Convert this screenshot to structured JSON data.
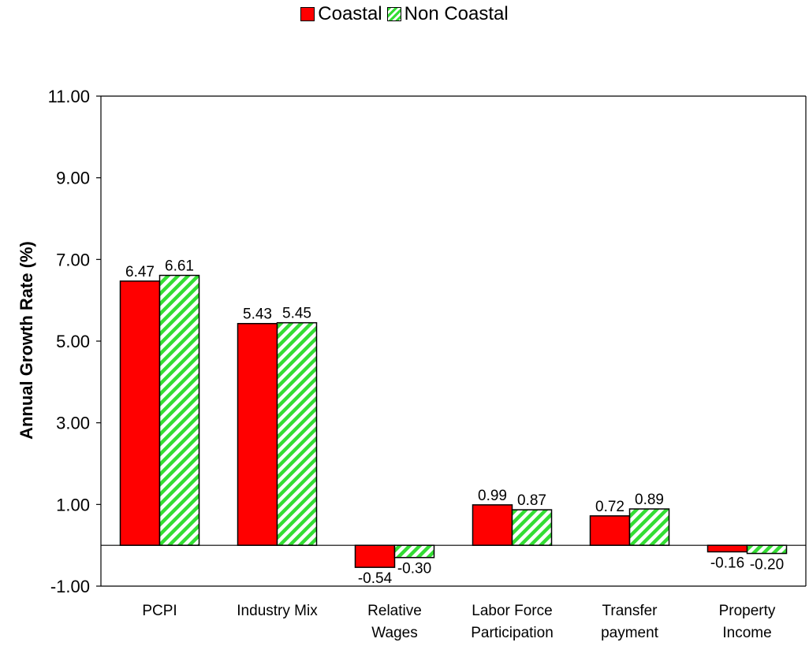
{
  "chart_data": {
    "type": "bar",
    "title": "",
    "xlabel": "",
    "ylabel": "Annual Growth Rate (%)",
    "categories": [
      [
        "PCPI"
      ],
      [
        "Industry Mix"
      ],
      [
        "Relative",
        "Wages"
      ],
      [
        "Labor Force",
        "Participation"
      ],
      [
        "Transfer",
        "payment"
      ],
      [
        "Property",
        "Income"
      ]
    ],
    "series": [
      {
        "name": "Coastal",
        "values": [
          6.47,
          5.43,
          -0.54,
          0.99,
          0.72,
          -0.16
        ],
        "labels": [
          "6.47",
          "5.43",
          "-0.54",
          "0.99",
          "0.72",
          "-0.16"
        ],
        "color": "#ff0000",
        "pattern": "solid"
      },
      {
        "name": "Non Coastal",
        "values": [
          6.61,
          5.45,
          -0.3,
          0.87,
          0.89,
          -0.2
        ],
        "labels": [
          "6.61",
          "5.45",
          "-0.30",
          "0.87",
          "0.89",
          "-0.20"
        ],
        "color": "#33dd33",
        "pattern": "diagonal-stripes"
      }
    ],
    "ylim": [
      -1.0,
      11.0
    ],
    "yticks": [
      "11.00",
      "9.00",
      "7.00",
      "5.00",
      "3.00",
      "1.00",
      "-1.00"
    ],
    "ytick_values": [
      11,
      9,
      7,
      5,
      3,
      1,
      -1
    ],
    "grid": false,
    "legend_position": "top-center"
  }
}
